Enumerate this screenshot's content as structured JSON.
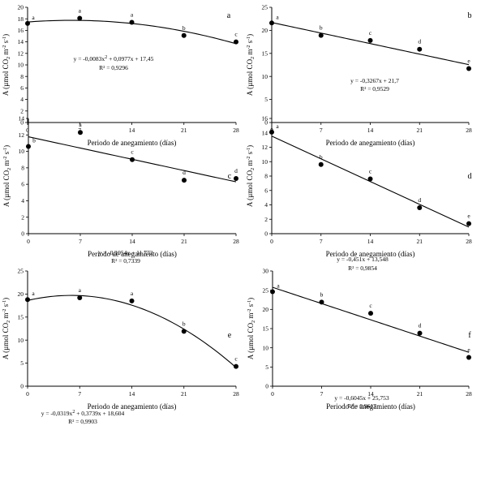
{
  "chart_data": [
    {
      "type": "scatter",
      "panel": "a",
      "xlabel": "Periodo de anegamiento (días)",
      "ylabel": [
        "A (µmol CO",
        "2",
        " m",
        "-2",
        " s",
        "-1",
        ")"
      ],
      "x": [
        0,
        7,
        14,
        21,
        28
      ],
      "y": [
        17.2,
        18.1,
        17.4,
        15.1,
        14.0
      ],
      "point_labels": [
        "a",
        "a",
        "a",
        "b",
        "c"
      ],
      "xticks": [
        0,
        7,
        14,
        21,
        28
      ],
      "xtick_labels": [
        "0",
        "7",
        "14",
        "21",
        "28"
      ],
      "yticks": [
        0,
        2,
        4,
        6,
        8,
        10,
        12,
        14,
        16,
        18,
        20
      ],
      "ytick_labels": [
        "0",
        "2",
        "4",
        "6",
        "8",
        "10",
        "12",
        "14",
        "16",
        "18",
        "20"
      ],
      "xlim": [
        0,
        28
      ],
      "ylim": [
        0,
        20
      ],
      "fit": {
        "kind": "quadratic",
        "coef": [
          17.45,
          0.0977,
          -0.0083
        ]
      },
      "equation": [
        "y = -0,0083x",
        "2",
        " + 0,0977x + 17,45"
      ],
      "r2": "R² = 0,9296"
    },
    {
      "type": "scatter",
      "panel": "b",
      "xlabel": "Periodo de anegamiento (días)",
      "ylabel": [
        "A (µmol CO",
        "2",
        " m",
        "-2",
        " s",
        "-1",
        ")"
      ],
      "x": [
        0,
        7,
        14,
        21,
        28
      ],
      "y": [
        21.6,
        18.9,
        17.8,
        15.9,
        11.7
      ],
      "point_labels": [
        "a",
        "b",
        "c",
        "d",
        "e"
      ],
      "xticks": [
        0,
        7,
        14,
        21,
        28
      ],
      "xtick_labels": [
        "0",
        "7",
        "14",
        "21",
        "28"
      ],
      "yticks": [
        0,
        5,
        10,
        15,
        20,
        25
      ],
      "ytick_labels": [
        "0",
        "5",
        "10",
        "15",
        "20",
        "25"
      ],
      "xlim": [
        0,
        28
      ],
      "ylim": [
        0,
        25
      ],
      "fit": {
        "kind": "linear",
        "coef": [
          21.7,
          -0.3267
        ]
      },
      "equation": [
        "y = -0,3267x + 21,7"
      ],
      "r2": "R² = 0,9529"
    },
    {
      "type": "scatter",
      "panel": "c",
      "xlabel": "Periodo de anegamiento (días)",
      "ylabel": [
        "A (µmol CO",
        "2",
        " m",
        "-2",
        " s",
        "-1",
        ")"
      ],
      "x": [
        0,
        7,
        14,
        21,
        28
      ],
      "y": [
        10.6,
        12.3,
        9.0,
        6.5,
        6.7
      ],
      "point_labels": [
        "b",
        "a",
        "c",
        "d",
        "d"
      ],
      "xticks": [
        0,
        7,
        14,
        21,
        28
      ],
      "xtick_labels": [
        "0",
        "7",
        "14",
        "21",
        "28"
      ],
      "yticks": [
        0,
        2,
        4,
        6,
        8,
        10,
        12,
        14
      ],
      "ytick_labels": [
        "0",
        "2",
        "4",
        "6",
        "8",
        "10",
        "12",
        "14"
      ],
      "xlim": [
        0,
        28
      ],
      "ylim": [
        0,
        14
      ],
      "fit": {
        "kind": "linear",
        "coef": [
          11.772,
          -0.1954
        ]
      },
      "equation": [
        "y = -0,1954x + 11,772"
      ],
      "r2": "R² = 0,7339"
    },
    {
      "type": "scatter",
      "panel": "d",
      "xlabel": "Periodo de anegamiento (días)",
      "ylabel": [
        "A (µmol CO",
        "2",
        " m",
        "-2",
        " s",
        "-1",
        ")"
      ],
      "x": [
        0,
        7,
        14,
        21,
        28
      ],
      "y": [
        14.1,
        9.6,
        7.6,
        3.6,
        1.4
      ],
      "point_labels": [
        "a",
        "b",
        "c",
        "d",
        "e"
      ],
      "xticks": [
        0,
        7,
        14,
        21,
        28
      ],
      "xtick_labels": [
        "0",
        "7",
        "14",
        "21",
        "28"
      ],
      "yticks": [
        0,
        2,
        4,
        6,
        8,
        10,
        12,
        14,
        16
      ],
      "ytick_labels": [
        "0",
        "2",
        "4",
        "6",
        "8",
        "10",
        "12",
        "14",
        "16"
      ],
      "xlim": [
        0,
        28
      ],
      "ylim": [
        0,
        16
      ],
      "fit": {
        "kind": "linear",
        "coef": [
          13.548,
          -0.451
        ]
      },
      "equation": [
        "y = -0,451x + 13,548"
      ],
      "r2": "R² = 0,9854"
    },
    {
      "type": "scatter",
      "panel": "e",
      "xlabel": "Periodo de anegamiento (días)",
      "ylabel": [
        "A (µmol CO",
        "2",
        " m",
        "-2",
        " s",
        "-1",
        ")"
      ],
      "x": [
        0,
        7,
        14,
        21,
        28
      ],
      "y": [
        18.8,
        19.2,
        18.5,
        11.9,
        4.3
      ],
      "point_labels": [
        "a",
        "a",
        "a",
        "b",
        "c"
      ],
      "xticks": [
        0,
        7,
        14,
        21,
        28
      ],
      "xtick_labels": [
        "0",
        "7",
        "14",
        "21",
        "28"
      ],
      "yticks": [
        0,
        5,
        10,
        15,
        20,
        25
      ],
      "ytick_labels": [
        "0",
        "5",
        "10",
        "15",
        "20",
        "25"
      ],
      "xlim": [
        0,
        28
      ],
      "ylim": [
        0,
        25
      ],
      "fit": {
        "kind": "quadratic",
        "coef": [
          18.604,
          0.3739,
          -0.0319
        ]
      },
      "equation": [
        "y = -0,0319x",
        "2",
        " + 0,3739x + 18,604"
      ],
      "r2": "R² = 0,9903"
    },
    {
      "type": "scatter",
      "panel": "f",
      "xlabel": "Periodo de anegamiento (días)",
      "ylabel": [
        "A (µmol CO",
        "2",
        " m",
        "-2",
        " s",
        "-1",
        ")"
      ],
      "x": [
        0,
        7,
        14,
        21,
        28
      ],
      "y": [
        24.6,
        21.9,
        19.0,
        13.8,
        7.5
      ],
      "point_labels": [
        "a",
        "b",
        "c",
        "d",
        "e"
      ],
      "xticks": [
        0,
        7,
        14,
        21,
        28
      ],
      "xtick_labels": [
        "0",
        "7",
        "14",
        "21",
        "28"
      ],
      "yticks": [
        0,
        5,
        10,
        15,
        20,
        25,
        30
      ],
      "ytick_labels": [
        "0",
        "5",
        "10",
        "15",
        "20",
        "25",
        "30"
      ],
      "xlim": [
        0,
        28
      ],
      "ylim": [
        0,
        30
      ],
      "fit": {
        "kind": "linear",
        "coef": [
          25.753,
          -0.6045
        ]
      },
      "equation": [
        "y = -0,6045x + 25,753"
      ],
      "r2": "R² = 0,9617"
    }
  ]
}
